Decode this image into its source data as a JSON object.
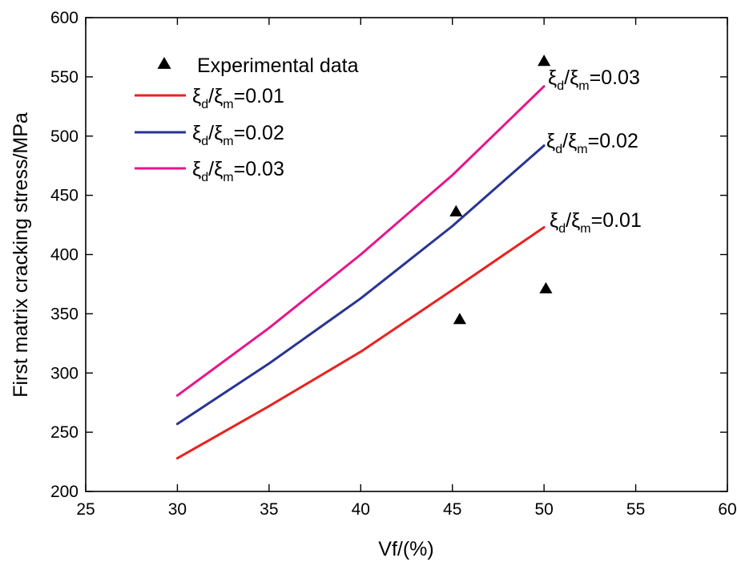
{
  "chart_data": {
    "type": "line",
    "title": "",
    "xlabel": "Vf/(%)",
    "ylabel": "First matrix cracking stress/MPa",
    "xlim": [
      25,
      60
    ],
    "ylim": [
      200,
      600
    ],
    "xticks": [
      25,
      30,
      35,
      40,
      45,
      50,
      55,
      60
    ],
    "yticks": [
      200,
      250,
      300,
      350,
      400,
      450,
      500,
      550,
      600
    ],
    "grid": false,
    "legend_position": "top-left",
    "series": [
      {
        "name": "ξd/ξm=0.01",
        "legend": {
          "greek": "ξ",
          "sub1": "d",
          "sub2": "m",
          "value": "=0.01"
        },
        "color": "#e8231f",
        "x": [
          30,
          35,
          40,
          45,
          50
        ],
        "y": [
          228,
          272,
          318,
          370,
          423
        ]
      },
      {
        "name": "ξd/ξm=0.02",
        "legend": {
          "greek": "ξ",
          "sub1": "d",
          "sub2": "m",
          "value": "=0.02"
        },
        "color": "#283593",
        "x": [
          30,
          35,
          40,
          45,
          50
        ],
        "y": [
          257,
          308,
          363,
          424,
          492
        ]
      },
      {
        "name": "ξd/ξm=0.03",
        "legend": {
          "greek": "ξ",
          "sub1": "d",
          "sub2": "m",
          "value": "=0.03"
        },
        "color": "#e6168c",
        "x": [
          30,
          35,
          40,
          45,
          50
        ],
        "y": [
          281,
          338,
          400,
          467,
          542
        ]
      }
    ],
    "experimental": {
      "name": "Experimental data",
      "marker": "triangle",
      "color": "#000000",
      "points": [
        {
          "x": 45.2,
          "y": 436
        },
        {
          "x": 45.4,
          "y": 345
        },
        {
          "x": 50.0,
          "y": 563
        },
        {
          "x": 50.1,
          "y": 371
        }
      ]
    },
    "annotations": [
      {
        "greek": "ξ",
        "sub1": "d",
        "sub2": "m",
        "value": "=0.03",
        "x": 50,
        "y": 542
      },
      {
        "greek": "ξ",
        "sub1": "d",
        "sub2": "m",
        "value": "=0.02",
        "x": 50,
        "y": 492
      },
      {
        "greek": "ξ",
        "sub1": "d",
        "sub2": "m",
        "value": "=0.01",
        "x": 50,
        "y": 423
      }
    ]
  }
}
